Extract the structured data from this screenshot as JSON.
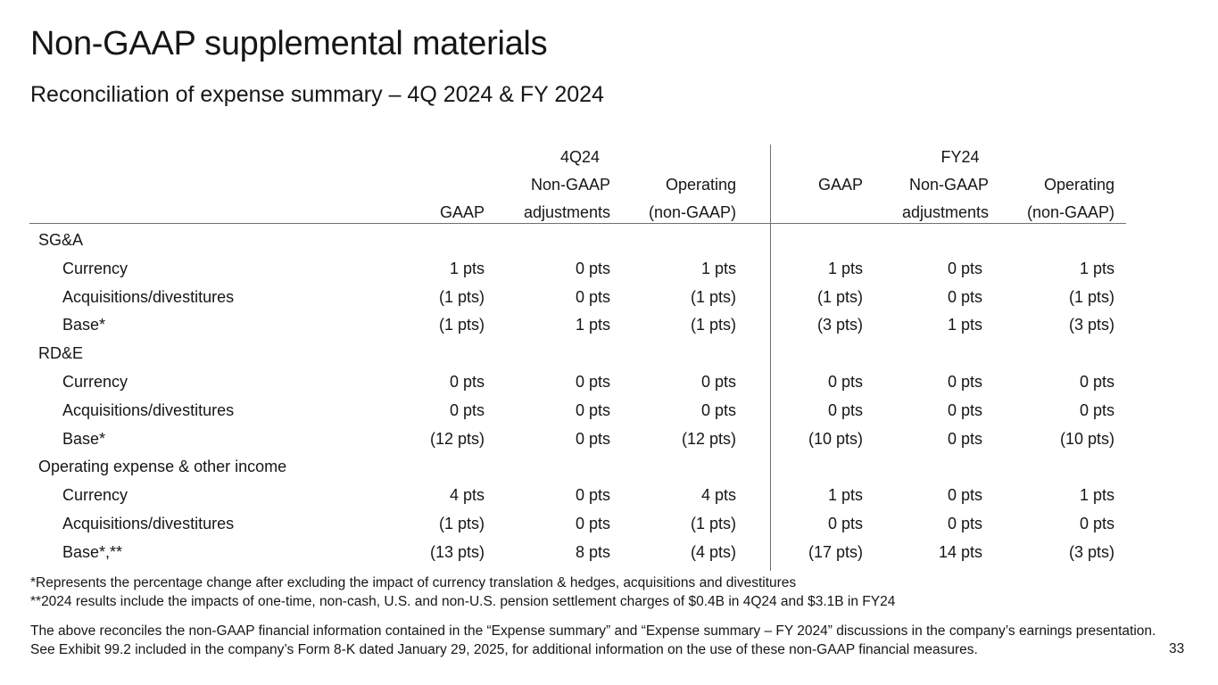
{
  "title": "Non-GAAP supplemental materials",
  "subtitle": "Reconciliation of expense summary – 4Q 2024 & FY 2024",
  "table": {
    "period_4q": "4Q24",
    "period_fy": "FY24",
    "col_headers": {
      "gaap": "GAAP",
      "nongaap_top": "Non-GAAP",
      "nongaap_bottom": "adjustments",
      "operating_top": "Operating",
      "operating_bottom": "(non-GAAP)"
    },
    "rows": [
      {
        "label": "SG&A",
        "indent": false,
        "values": [
          "",
          "",
          "",
          "",
          "",
          ""
        ]
      },
      {
        "label": "Currency",
        "indent": true,
        "values": [
          "1 pts",
          "0 pts",
          "1 pts",
          "1 pts",
          "0 pts",
          "1 pts"
        ]
      },
      {
        "label": "Acquisitions/divestitures",
        "indent": true,
        "values": [
          "(1 pts)",
          "0 pts",
          "(1 pts)",
          "(1 pts)",
          "0 pts",
          "(1 pts)"
        ]
      },
      {
        "label": "Base*",
        "indent": true,
        "values": [
          "(1 pts)",
          "1 pts",
          "(1 pts)",
          "(3 pts)",
          "1 pts",
          "(3 pts)"
        ]
      },
      {
        "label": "RD&E",
        "indent": false,
        "values": [
          "",
          "",
          "",
          "",
          "",
          ""
        ]
      },
      {
        "label": "Currency",
        "indent": true,
        "values": [
          "0 pts",
          "0 pts",
          "0 pts",
          "0 pts",
          "0 pts",
          "0 pts"
        ]
      },
      {
        "label": "Acquisitions/divestitures",
        "indent": true,
        "values": [
          "0 pts",
          "0 pts",
          "0 pts",
          "0 pts",
          "0 pts",
          "0 pts"
        ]
      },
      {
        "label": "Base*",
        "indent": true,
        "values": [
          "(12 pts)",
          "0 pts",
          "(12 pts)",
          "(10 pts)",
          "0 pts",
          "(10 pts)"
        ]
      },
      {
        "label": "Operating expense & other income",
        "indent": false,
        "values": [
          "",
          "",
          "",
          "",
          "",
          ""
        ]
      },
      {
        "label": "Currency",
        "indent": true,
        "values": [
          "4 pts",
          "0 pts",
          "4 pts",
          "1 pts",
          "0 pts",
          "1 pts"
        ]
      },
      {
        "label": "Acquisitions/divestitures",
        "indent": true,
        "values": [
          "(1 pts)",
          "0 pts",
          "(1 pts)",
          "0 pts",
          "0 pts",
          "0 pts"
        ]
      },
      {
        "label": "Base*,**",
        "indent": true,
        "values": [
          "(13 pts)",
          "8 pts",
          "(4 pts)",
          "(17 pts)",
          "14 pts",
          "(3 pts)"
        ]
      }
    ]
  },
  "notes": {
    "note1": "*Represents the percentage change after excluding the impact of currency translation & hedges, acquisitions and divestitures",
    "note2": "**2024 results include the impacts of one-time, non-cash, U.S. and non-U.S. pension settlement charges of $0.4B in 4Q24 and $3.1B in FY24",
    "footer": "The above reconciles the non-GAAP financial information contained in the “Expense summary” and “Expense summary – FY 2024” discussions in the company’s earnings presentation. See Exhibit 99.2 included in the company’s Form 8-K dated January 29, 2025, for additional information on the use of these non-GAAP financial measures."
  },
  "page_number": "33"
}
